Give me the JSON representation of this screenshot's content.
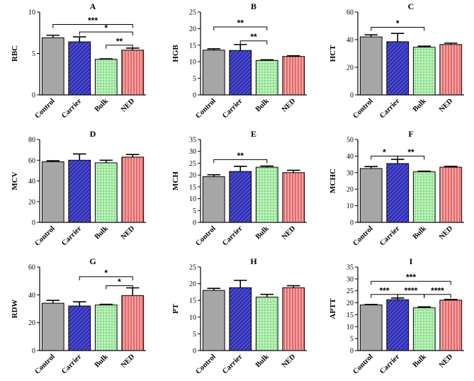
{
  "colors": {
    "control": "#a6a6a6",
    "carrier": "#3d3dbf",
    "bulk": "#b5f2b5",
    "ned": "#f28c8c"
  },
  "chart_data": [
    {
      "type": "bar",
      "title": "A",
      "ylabel": "RBC",
      "categories": [
        "Control",
        "Carrier",
        "Bulk",
        "NED"
      ],
      "values": [
        6.9,
        6.4,
        4.3,
        5.4
      ],
      "errors": [
        0.3,
        0.6,
        0.05,
        0.25
      ],
      "ylim": [
        0,
        10
      ],
      "yticks": [
        0,
        5,
        10
      ],
      "ytick_labels": [
        "0",
        "5",
        "10"
      ],
      "significance": [
        {
          "from": 0,
          "to": 3,
          "y": 8.5,
          "label": "***"
        },
        {
          "from": 1,
          "to": 3,
          "y": 7.6,
          "label": "*"
        },
        {
          "from": 2,
          "to": 3,
          "y": 6.0,
          "label": "**"
        }
      ]
    },
    {
      "type": "bar",
      "title": "B",
      "ylabel": "HGB",
      "categories": [
        "Control",
        "Carrier",
        "Bulk",
        "NED"
      ],
      "values": [
        13.5,
        13.4,
        10.4,
        11.6
      ],
      "errors": [
        0.4,
        1.8,
        0.2,
        0.2
      ],
      "ylim": [
        0,
        25
      ],
      "yticks": [
        0,
        5,
        10,
        15,
        20,
        25
      ],
      "ytick_labels": [
        "0",
        "5",
        "10",
        "15",
        "20",
        "25"
      ],
      "significance": [
        {
          "from": 0,
          "to": 2,
          "y": 20.5,
          "label": "**"
        },
        {
          "from": 1,
          "to": 2,
          "y": 16.3,
          "label": "**"
        }
      ]
    },
    {
      "type": "bar",
      "title": "C",
      "ylabel": "HCT",
      "categories": [
        "Control",
        "Carrier",
        "Bulk",
        "NED"
      ],
      "values": [
        42,
        38.5,
        34.5,
        36.5
      ],
      "errors": [
        1.5,
        6,
        0.8,
        1.0
      ],
      "ylim": [
        0,
        60
      ],
      "yticks": [
        0,
        20,
        40,
        60
      ],
      "ytick_labels": [
        "0",
        "20",
        "40",
        "60"
      ],
      "significance": [
        {
          "from": 0,
          "to": 2,
          "y": 49,
          "label": "*"
        }
      ]
    },
    {
      "type": "bar",
      "title": "D",
      "ylabel": "MCV",
      "categories": [
        "Control",
        "Carrier",
        "Bulk",
        "NED"
      ],
      "values": [
        58.5,
        60,
        57.5,
        63
      ],
      "errors": [
        1.0,
        6,
        2.5,
        2.5
      ],
      "ylim": [
        0,
        80
      ],
      "yticks": [
        0,
        20,
        40,
        60,
        80
      ],
      "ytick_labels": [
        "0",
        "20",
        "40",
        "60",
        "80"
      ],
      "significance": []
    },
    {
      "type": "bar",
      "title": "E",
      "ylabel": "MCH",
      "categories": [
        "Control",
        "Carrier",
        "Bulk",
        "NED"
      ],
      "values": [
        19.3,
        21.5,
        23.3,
        21
      ],
      "errors": [
        0.8,
        2.2,
        0.5,
        1.0
      ],
      "ylim": [
        0,
        35
      ],
      "yticks": [
        0,
        5,
        10,
        15,
        20,
        25,
        30,
        35
      ],
      "ytick_labels": [
        "0",
        "5",
        "10",
        "15",
        "20",
        "25",
        "30",
        "35"
      ],
      "significance": [
        {
          "from": 0,
          "to": 2,
          "y": 26.5,
          "label": "**"
        }
      ]
    },
    {
      "type": "bar",
      "title": "F",
      "ylabel": "MCHC",
      "categories": [
        "Control",
        "Carrier",
        "Bulk",
        "NED"
      ],
      "values": [
        32.5,
        35.5,
        30.5,
        33.3
      ],
      "errors": [
        1.2,
        2.5,
        0.4,
        0.5
      ],
      "ylim": [
        0,
        50
      ],
      "yticks": [
        0,
        10,
        20,
        30,
        40,
        50
      ],
      "ytick_labels": [
        "0",
        "10",
        "20",
        "30",
        "40",
        "50"
      ],
      "significance": [
        {
          "from": 0,
          "to": 1,
          "y": 40,
          "label": "*"
        },
        {
          "from": 1,
          "to": 2,
          "y": 40,
          "label": "**"
        }
      ]
    },
    {
      "type": "bar",
      "title": "G",
      "ylabel": "RDW",
      "categories": [
        "Control",
        "Carrier",
        "Bulk",
        "NED"
      ],
      "values": [
        34,
        32,
        32.7,
        39.5
      ],
      "errors": [
        2.0,
        3.0,
        0.5,
        5.5
      ],
      "ylim": [
        0,
        60
      ],
      "yticks": [
        0,
        20,
        40,
        60
      ],
      "ytick_labels": [
        "0",
        "20",
        "40",
        "60"
      ],
      "significance": [
        {
          "from": 1,
          "to": 3,
          "y": 53,
          "label": "*"
        },
        {
          "from": 2,
          "to": 3,
          "y": 46.5,
          "label": "*"
        }
      ]
    },
    {
      "type": "bar",
      "title": "H",
      "ylabel": "PT",
      "categories": [
        "Control",
        "Carrier",
        "Bulk",
        "NED"
      ],
      "values": [
        18,
        18.8,
        16,
        18.8
      ],
      "errors": [
        0.6,
        2.2,
        0.8,
        0.6
      ],
      "ylim": [
        0,
        25
      ],
      "yticks": [
        0,
        5,
        10,
        15,
        20,
        25
      ],
      "ytick_labels": [
        "0",
        "5",
        "10",
        "15",
        "20",
        "25"
      ],
      "significance": []
    },
    {
      "type": "bar",
      "title": "I",
      "ylabel": "APTT",
      "categories": [
        "Control",
        "Carrier",
        "Bulk",
        "NED"
      ],
      "values": [
        19.1,
        21.3,
        17.9,
        21.1
      ],
      "errors": [
        0.2,
        0.7,
        0.4,
        0.3
      ],
      "ylim": [
        0,
        35
      ],
      "yticks": [
        0,
        5,
        10,
        15,
        20,
        25,
        30,
        35
      ],
      "ytick_labels": [
        "0",
        "5",
        "10",
        "15",
        "20",
        "25",
        "30",
        "35"
      ],
      "significance": [
        {
          "from": 0,
          "to": 3,
          "y": 29,
          "label": "***"
        },
        {
          "from": 0,
          "to": 1,
          "y": 23.5,
          "label": "***"
        },
        {
          "from": 1,
          "to": 2,
          "y": 23.5,
          "label": "****"
        },
        {
          "from": 2,
          "to": 3,
          "y": 23.5,
          "label": "****"
        }
      ]
    }
  ]
}
